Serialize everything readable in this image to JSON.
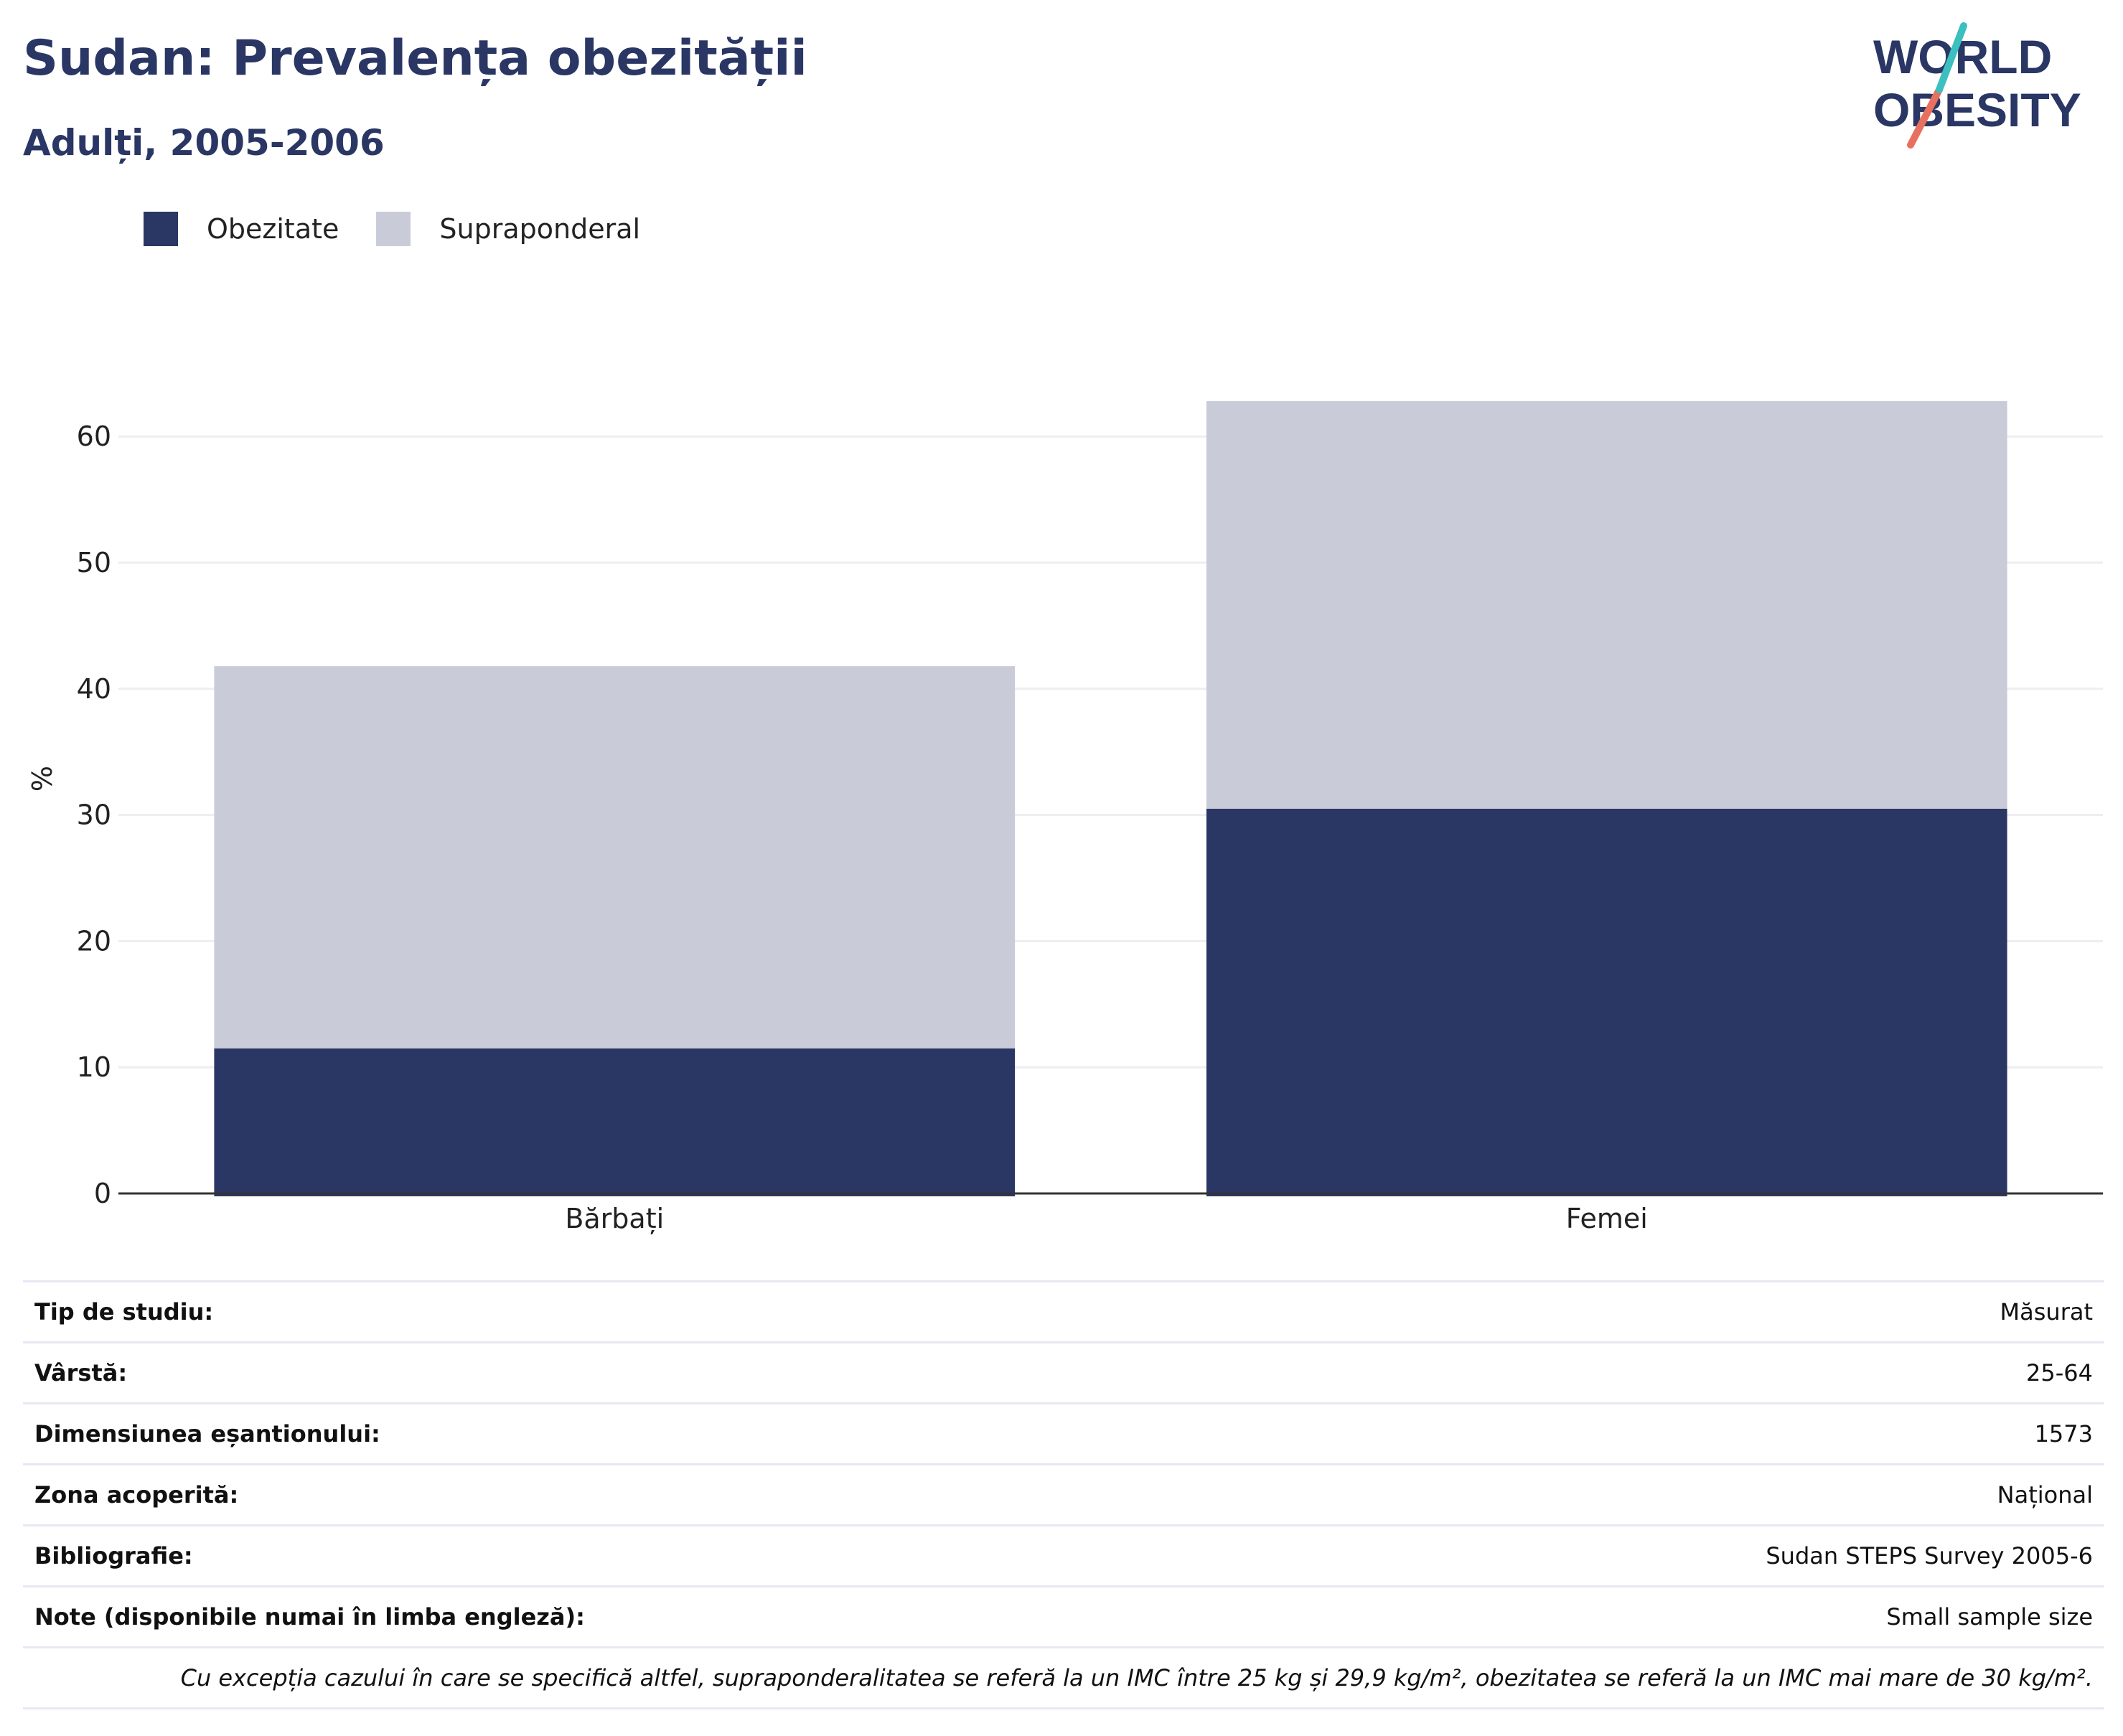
{
  "header": {
    "title": "Sudan: Prevalența obezității",
    "subtitle": "Adulți, 2005-2006",
    "logo_line1": "WORLD",
    "logo_line2": "OBESITY"
  },
  "legend": [
    {
      "label": "Obezitate",
      "color": "#2a3664"
    },
    {
      "label": "Supraponderal",
      "color": "#c9ccd8"
    }
  ],
  "chart_data": {
    "type": "bar",
    "stacked": true,
    "categories": [
      "Bărbați",
      "Femei"
    ],
    "series": [
      {
        "name": "Obezitate",
        "color": "#2a3664",
        "values": [
          11.5,
          30.5
        ]
      },
      {
        "name": "Supraponderal",
        "color": "#c9ccd8",
        "values": [
          30.3,
          32.3
        ]
      }
    ],
    "ylabel": "%",
    "ylim": [
      0,
      65
    ],
    "yticks": [
      0,
      10,
      20,
      30,
      40,
      50,
      60
    ],
    "grid": true
  },
  "info": {
    "rows": [
      {
        "label": "Tip de studiu:",
        "value": "Măsurat"
      },
      {
        "label": "Vârstă:",
        "value": "25-64"
      },
      {
        "label": "Dimensiunea eșantionului:",
        "value": "1573"
      },
      {
        "label": "Zona acoperită:",
        "value": "Național"
      },
      {
        "label": "Bibliografie:",
        "value": "Sudan STEPS Survey 2005-6"
      },
      {
        "label": "Note (disponibile numai în limba engleză):",
        "value": "Small sample size"
      }
    ],
    "footnote": "Cu excepția cazului în care se specifică altfel, supraponderalitatea se referă la un IMC între 25 kg și 29,9 kg/m², obezitatea se referă la un IMC mai mare de 30 kg/m²."
  }
}
